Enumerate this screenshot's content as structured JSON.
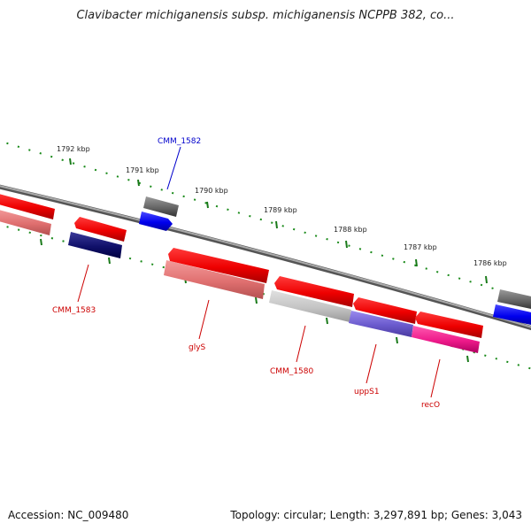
{
  "title": "Clavibacter michiganensis subsp. michiganensis NCPPB 382, co...",
  "footer": {
    "accession": "Accession: NC_009480",
    "summary": "Topology: circular; Length: 3,297,891 bp; Genes: 3,043"
  },
  "scale_ticks": [
    {
      "label": "1792 kbp"
    },
    {
      "label": "1791 kbp"
    },
    {
      "label": "1790 kbp"
    },
    {
      "label": "1789 kbp"
    },
    {
      "label": "1788 kbp"
    },
    {
      "label": "1787 kbp"
    },
    {
      "label": "1786 kbp"
    }
  ],
  "gene_labels": {
    "cmm_1582": "CMM_1582",
    "cmm_1583": "CMM_1583",
    "glys": "glyS",
    "cmm_1580": "CMM_1580",
    "upps1": "uppS1",
    "reco": "recO"
  },
  "colors": {
    "forward_gene": "#ff0000",
    "reverse_gene": "#ee7777",
    "backbone": "#888888",
    "tick": "#1a7a1a",
    "label_red": "#cc0000",
    "label_blue": "#0000cc"
  }
}
